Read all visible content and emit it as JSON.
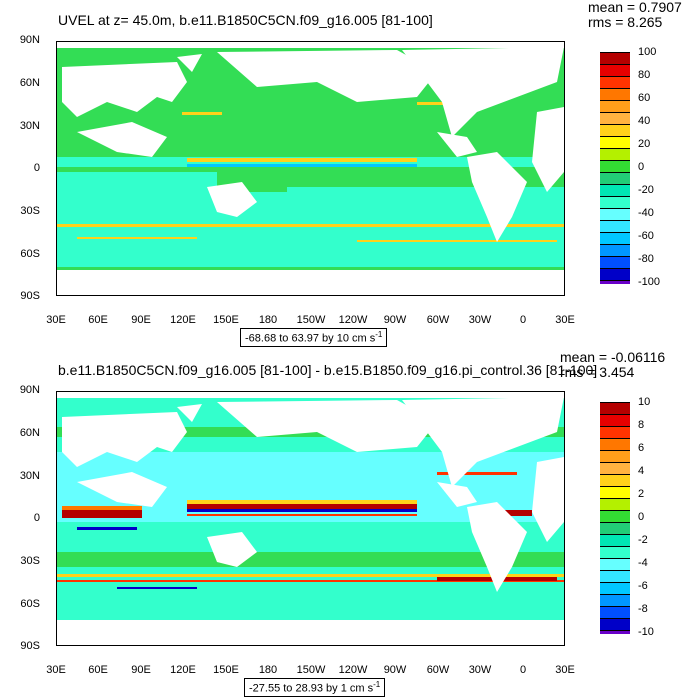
{
  "panels": [
    {
      "title": "UVEL at z=  45.0m, b.e11.B1850C5CN.f09_g16.005 [81-100]",
      "mean": "mean = 0.7907",
      "rms": "rms = 8.265",
      "range": "-68.68 to 63.97 by 10 cm s",
      "range_sup": "-1",
      "legend_labels": [
        "100",
        "80",
        "60",
        "40",
        "20",
        "0",
        "-20",
        "-40",
        "-60",
        "-80",
        "-100"
      ]
    },
    {
      "title": "b.e11.B1850C5CN.f09_g16.005 [81-100] - b.e15.B1850.f09_g16.pi_control.36 [81-100]",
      "mean": "mean = -0.06116",
      "rms": "rms = 3.454",
      "range": "-27.55 to 28.93 by 1 cm s",
      "range_sup": "-1",
      "legend_labels": [
        "10",
        "8",
        "6",
        "4",
        "2",
        "0",
        "-2",
        "-4",
        "-6",
        "-8",
        "-10"
      ]
    }
  ],
  "lat_labels": [
    "90N",
    "60N",
    "30N",
    "0",
    "30S",
    "60S",
    "90S"
  ],
  "lon_labels": [
    "30E",
    "60E",
    "90E",
    "120E",
    "150E",
    "180",
    "150W",
    "120W",
    "90W",
    "60W",
    "30W",
    "0",
    "30E"
  ],
  "colors": {
    "legend": [
      "#b40000",
      "#e60000",
      "#ff3300",
      "#ff7700",
      "#ff9f1a",
      "#ffb340",
      "#ffd21a",
      "#ffff00",
      "#b4f000",
      "#33dd33",
      "#22cc77",
      "#00e6b4",
      "#33ffcc",
      "#66ffff",
      "#33e6ff",
      "#00c8ff",
      "#0096ff",
      "#0050ff",
      "#0000c8",
      "#6a00c8",
      "#b400d2",
      "#ff00ff",
      "#c8c8c8",
      "#6a6a6a"
    ],
    "ocean_top": "#33dd55",
    "ocean_bottom": "#33ffcc",
    "land": "#ffffff"
  }
}
